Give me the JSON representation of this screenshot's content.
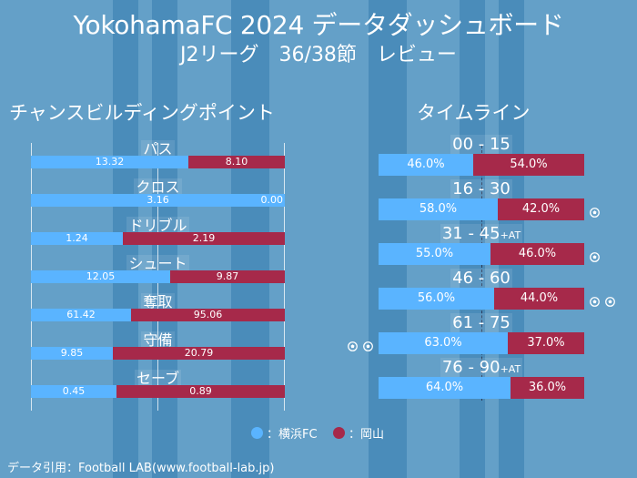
{
  "header": {
    "title": "YokohamaFC 2024 データダッシュボード",
    "subtitle": "J2リーグ　36/38節　レビュー"
  },
  "colors": {
    "home": "#5ab4ff",
    "away": "#a6294a",
    "background": "#64a0c8",
    "stripe": "#4a8cba"
  },
  "chart_data": [
    {
      "type": "bar",
      "orientation": "horizontal-stacked-100",
      "title": "チャンスビルディングポイント",
      "categories": [
        "パス",
        "クロス",
        "ドリブル",
        "シュート",
        "奪取",
        "守備",
        "セーブ"
      ],
      "series": [
        {
          "name": "横浜FC",
          "values": [
            13.32,
            3.16,
            1.24,
            12.05,
            61.42,
            9.85,
            0.45
          ],
          "labels": [
            "13.32",
            "3.16",
            "1.24",
            "12.05",
            "61.42",
            "9.85",
            "0.45"
          ]
        },
        {
          "name": "岡山",
          "values": [
            8.1,
            0.0,
            2.19,
            9.87,
            95.06,
            20.79,
            0.89
          ],
          "labels": [
            "8.10",
            "0.00",
            "2.19",
            "9.87",
            "95.06",
            "20.79",
            "0.89"
          ]
        }
      ]
    },
    {
      "type": "bar",
      "orientation": "horizontal-stacked-100",
      "title": "タイムライン",
      "categories": [
        "00 - 15",
        "16 - 30",
        "31 - 45",
        "46 - 60",
        "61 - 75",
        "76 - 90"
      ],
      "category_suffix": [
        "",
        "",
        "+AT",
        "",
        "",
        "+AT"
      ],
      "series": [
        {
          "name": "横浜FC",
          "values": [
            46.0,
            58.0,
            55.0,
            56.0,
            63.0,
            64.0
          ],
          "labels": [
            "46.0%",
            "58.0%",
            "55.0%",
            "56.0%",
            "63.0%",
            "64.0%"
          ],
          "goals": [
            0,
            0,
            0,
            0,
            2,
            0
          ]
        },
        {
          "name": "岡山",
          "values": [
            54.0,
            42.0,
            46.0,
            44.0,
            37.0,
            36.0
          ],
          "labels": [
            "54.0%",
            "42.0%",
            "46.0%",
            "44.0%",
            "37.0%",
            "36.0%"
          ],
          "goals": [
            0,
            1,
            1,
            2,
            0,
            0
          ]
        }
      ],
      "reference_line": 50
    }
  ],
  "legend": [
    {
      "label": "：横浜FC",
      "color": "#5ab4ff"
    },
    {
      "label": "：岡山",
      "color": "#a6294a"
    }
  ],
  "footer": "データ引用：Football LAB(www.football-lab.jp)",
  "icons": {
    "goal": "soccer-ball-icon"
  }
}
